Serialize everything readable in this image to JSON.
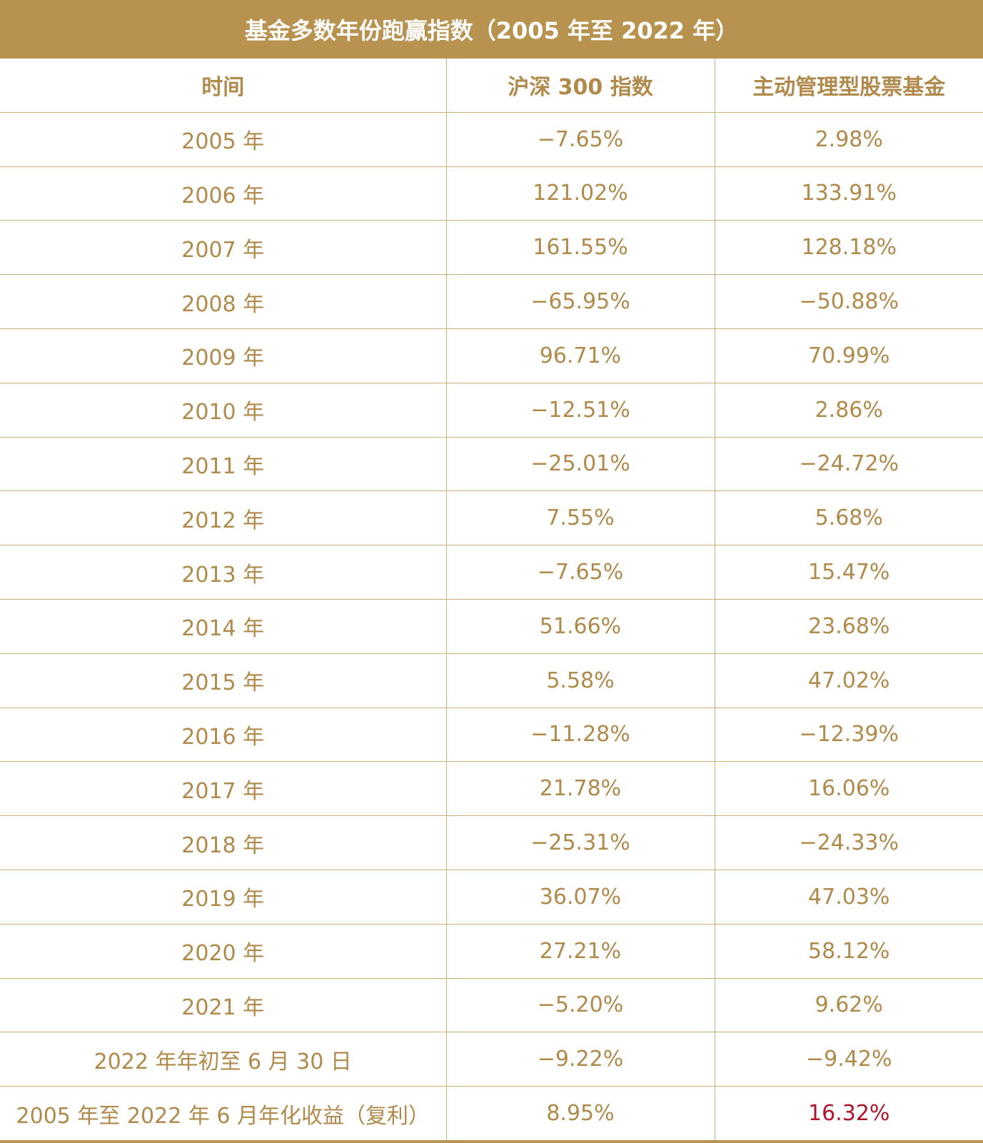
{
  "title": "基金多数年份跑赢指数（2005 年至 2022 年）",
  "table": {
    "columns": [
      "时间",
      "沪深 300 指数",
      "主动管理型股票基金"
    ],
    "rows": [
      [
        "2005 年",
        "−7.65%",
        "2.98%"
      ],
      [
        "2006 年",
        "121.02%",
        "133.91%"
      ],
      [
        "2007 年",
        "161.55%",
        "128.18%"
      ],
      [
        "2008 年",
        "−65.95%",
        "−50.88%"
      ],
      [
        "2009 年",
        "96.71%",
        "70.99%"
      ],
      [
        "2010 年",
        "−12.51%",
        "2.86%"
      ],
      [
        "2011 年",
        "−25.01%",
        "−24.72%"
      ],
      [
        "2012 年",
        "7.55%",
        "5.68%"
      ],
      [
        "2013 年",
        "−7.65%",
        "15.47%"
      ],
      [
        "2014 年",
        "51.66%",
        "23.68%"
      ],
      [
        "2015 年",
        "5.58%",
        "47.02%"
      ],
      [
        "2016 年",
        "−11.28%",
        "−12.39%"
      ],
      [
        "2017 年",
        "21.78%",
        "16.06%"
      ],
      [
        "2018 年",
        "−25.31%",
        "−24.33%"
      ],
      [
        "2019 年",
        "36.07%",
        "47.03%"
      ],
      [
        "2020 年",
        "27.21%",
        "58.12%"
      ],
      [
        "2021 年",
        "−5.20%",
        "9.62%"
      ],
      [
        "2022 年年初至 6 月 30 日",
        "−9.22%",
        "−9.42%"
      ],
      [
        "2005 年至 2022 年 6 月年化收益（复利）",
        "8.95%",
        "16.32%"
      ]
    ]
  }
}
